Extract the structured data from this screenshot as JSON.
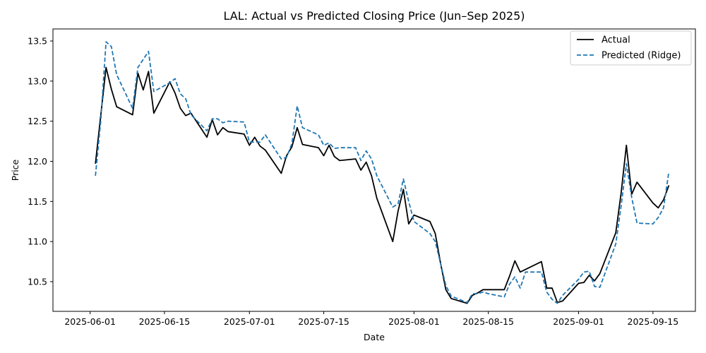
{
  "chart_data": {
    "type": "line",
    "title": "LAL: Actual vs Predicted Closing Price (Jun–Sep 2025)",
    "xlabel": "Date",
    "ylabel": "Price",
    "x_ticks": [
      "2025-06-01",
      "2025-06-15",
      "2025-07-01",
      "2025-07-15",
      "2025-08-01",
      "2025-08-15",
      "2025-09-01",
      "2025-09-15"
    ],
    "y_ticks": [
      "10.5",
      "11.0",
      "11.5",
      "12.0",
      "12.5",
      "13.0",
      "13.5"
    ],
    "xlim": [
      "2025-05-25",
      "2025-09-23"
    ],
    "ylim": [
      10.13,
      13.65
    ],
    "grid": false,
    "legend_position": "top-right",
    "series": [
      {
        "name": "Actual",
        "color": "#000000",
        "style": "solid",
        "points": [
          [
            "2025-06-02",
            11.97
          ],
          [
            "2025-06-04",
            13.17
          ],
          [
            "2025-06-05",
            12.9
          ],
          [
            "2025-06-06",
            12.68
          ],
          [
            "2025-06-09",
            12.58
          ],
          [
            "2025-06-10",
            13.1
          ],
          [
            "2025-06-11",
            12.89
          ],
          [
            "2025-06-12",
            13.12
          ],
          [
            "2025-06-13",
            12.6
          ],
          [
            "2025-06-16",
            12.99
          ],
          [
            "2025-06-17",
            12.85
          ],
          [
            "2025-06-18",
            12.66
          ],
          [
            "2025-06-19",
            12.57
          ],
          [
            "2025-06-20",
            12.6
          ],
          [
            "2025-06-23",
            12.3
          ],
          [
            "2025-06-24",
            12.52
          ],
          [
            "2025-06-25",
            12.33
          ],
          [
            "2025-06-26",
            12.42
          ],
          [
            "2025-06-27",
            12.37
          ],
          [
            "2025-06-30",
            12.34
          ],
          [
            "2025-07-01",
            12.2
          ],
          [
            "2025-07-02",
            12.3
          ],
          [
            "2025-07-03",
            12.19
          ],
          [
            "2025-07-04",
            12.14
          ],
          [
            "2025-07-07",
            11.85
          ],
          [
            "2025-07-08",
            12.07
          ],
          [
            "2025-07-09",
            12.18
          ],
          [
            "2025-07-10",
            12.42
          ],
          [
            "2025-07-11",
            12.21
          ],
          [
            "2025-07-14",
            12.17
          ],
          [
            "2025-07-15",
            12.07
          ],
          [
            "2025-07-16",
            12.2
          ],
          [
            "2025-07-17",
            12.06
          ],
          [
            "2025-07-18",
            12.01
          ],
          [
            "2025-07-21",
            12.03
          ],
          [
            "2025-07-22",
            11.89
          ],
          [
            "2025-07-23",
            11.99
          ],
          [
            "2025-07-24",
            11.82
          ],
          [
            "2025-07-25",
            11.54
          ],
          [
            "2025-07-28",
            11.0
          ],
          [
            "2025-07-29",
            11.38
          ],
          [
            "2025-07-30",
            11.65
          ],
          [
            "2025-07-31",
            11.22
          ],
          [
            "2025-08-01",
            11.33
          ],
          [
            "2025-08-04",
            11.25
          ],
          [
            "2025-08-05",
            11.1
          ],
          [
            "2025-08-06",
            10.73
          ],
          [
            "2025-08-07",
            10.4
          ],
          [
            "2025-08-08",
            10.29
          ],
          [
            "2025-08-11",
            10.23
          ],
          [
            "2025-08-12",
            10.33
          ],
          [
            "2025-08-13",
            10.36
          ],
          [
            "2025-08-14",
            10.4
          ],
          [
            "2025-08-15",
            10.4
          ],
          [
            "2025-08-18",
            10.4
          ],
          [
            "2025-08-19",
            10.57
          ],
          [
            "2025-08-20",
            10.76
          ],
          [
            "2025-08-21",
            10.62
          ],
          [
            "2025-08-25",
            10.75
          ],
          [
            "2025-08-26",
            10.42
          ],
          [
            "2025-08-27",
            10.42
          ],
          [
            "2025-08-28",
            10.24
          ],
          [
            "2025-08-29",
            10.26
          ],
          [
            "2025-09-01",
            10.48
          ],
          [
            "2025-09-02",
            10.49
          ],
          [
            "2025-09-03",
            10.58
          ],
          [
            "2025-09-04",
            10.51
          ],
          [
            "2025-09-05",
            10.6
          ],
          [
            "2025-09-08",
            11.11
          ],
          [
            "2025-09-09",
            11.6
          ],
          [
            "2025-09-10",
            12.2
          ],
          [
            "2025-09-11",
            11.59
          ],
          [
            "2025-09-12",
            11.74
          ],
          [
            "2025-09-15",
            11.48
          ],
          [
            "2025-09-16",
            11.42
          ],
          [
            "2025-09-17",
            11.52
          ],
          [
            "2025-09-18",
            11.7
          ]
        ]
      },
      {
        "name": "Predicted (Ridge)",
        "color": "#1f77b4",
        "style": "dashed",
        "points": [
          [
            "2025-06-02",
            11.82
          ],
          [
            "2025-06-03",
            12.5
          ],
          [
            "2025-06-04",
            13.49
          ],
          [
            "2025-06-05",
            13.43
          ],
          [
            "2025-06-06",
            13.08
          ],
          [
            "2025-06-09",
            12.66
          ],
          [
            "2025-06-10",
            13.17
          ],
          [
            "2025-06-11",
            13.27
          ],
          [
            "2025-06-12",
            13.37
          ],
          [
            "2025-06-13",
            12.87
          ],
          [
            "2025-06-16",
            12.98
          ],
          [
            "2025-06-17",
            13.03
          ],
          [
            "2025-06-18",
            12.84
          ],
          [
            "2025-06-19",
            12.78
          ],
          [
            "2025-06-20",
            12.58
          ],
          [
            "2025-06-23",
            12.38
          ],
          [
            "2025-06-24",
            12.53
          ],
          [
            "2025-06-25",
            12.53
          ],
          [
            "2025-06-26",
            12.48
          ],
          [
            "2025-06-27",
            12.5
          ],
          [
            "2025-06-30",
            12.49
          ],
          [
            "2025-07-01",
            12.24
          ],
          [
            "2025-07-02",
            12.24
          ],
          [
            "2025-07-03",
            12.24
          ],
          [
            "2025-07-04",
            12.33
          ],
          [
            "2025-07-07",
            12.03
          ],
          [
            "2025-07-08",
            12.05
          ],
          [
            "2025-07-09",
            12.22
          ],
          [
            "2025-07-10",
            12.69
          ],
          [
            "2025-07-11",
            12.42
          ],
          [
            "2025-07-14",
            12.33
          ],
          [
            "2025-07-15",
            12.2
          ],
          [
            "2025-07-16",
            12.23
          ],
          [
            "2025-07-17",
            12.16
          ],
          [
            "2025-07-18",
            12.17
          ],
          [
            "2025-07-21",
            12.17
          ],
          [
            "2025-07-22",
            12.01
          ],
          [
            "2025-07-23",
            12.13
          ],
          [
            "2025-07-24",
            12.03
          ],
          [
            "2025-07-25",
            11.82
          ],
          [
            "2025-07-28",
            11.43
          ],
          [
            "2025-07-29",
            11.47
          ],
          [
            "2025-07-30",
            11.78
          ],
          [
            "2025-07-31",
            11.5
          ],
          [
            "2025-08-01",
            11.25
          ],
          [
            "2025-08-04",
            11.1
          ],
          [
            "2025-08-05",
            11.0
          ],
          [
            "2025-08-06",
            10.73
          ],
          [
            "2025-08-07",
            10.45
          ],
          [
            "2025-08-08",
            10.32
          ],
          [
            "2025-08-11",
            10.24
          ],
          [
            "2025-08-12",
            10.35
          ],
          [
            "2025-08-13",
            10.35
          ],
          [
            "2025-08-14",
            10.37
          ],
          [
            "2025-08-15",
            10.35
          ],
          [
            "2025-08-18",
            10.31
          ],
          [
            "2025-08-19",
            10.47
          ],
          [
            "2025-08-20",
            10.56
          ],
          [
            "2025-08-21",
            10.42
          ],
          [
            "2025-08-22",
            10.62
          ],
          [
            "2025-08-25",
            10.62
          ],
          [
            "2025-08-26",
            10.37
          ],
          [
            "2025-08-27",
            10.28
          ],
          [
            "2025-08-28",
            10.23
          ],
          [
            "2025-08-29",
            10.33
          ],
          [
            "2025-09-01",
            10.53
          ],
          [
            "2025-09-02",
            10.62
          ],
          [
            "2025-09-03",
            10.63
          ],
          [
            "2025-09-04",
            10.44
          ],
          [
            "2025-09-05",
            10.43
          ],
          [
            "2025-09-08",
            10.97
          ],
          [
            "2025-09-09",
            11.44
          ],
          [
            "2025-09-10",
            11.97
          ],
          [
            "2025-09-11",
            11.55
          ],
          [
            "2025-09-12",
            11.23
          ],
          [
            "2025-09-15",
            11.22
          ],
          [
            "2025-09-16",
            11.3
          ],
          [
            "2025-09-17",
            11.42
          ],
          [
            "2025-09-18",
            11.87
          ]
        ]
      }
    ]
  }
}
